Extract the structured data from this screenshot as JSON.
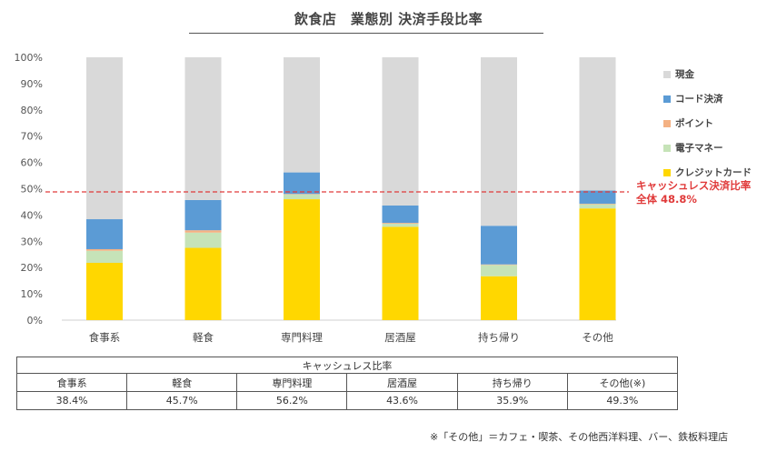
{
  "title": "飲食店　業態別 決済手段比率",
  "chart_data": {
    "type": "bar",
    "stacked": true,
    "categories": [
      "食事系",
      "軽食",
      "専門料理",
      "居酒屋",
      "持ち帰り",
      "その他"
    ],
    "y_ticks": [
      "0%",
      "10%",
      "20%",
      "30%",
      "40%",
      "50%",
      "60%",
      "70%",
      "80%",
      "90%",
      "100%"
    ],
    "ylim": [
      0,
      100
    ],
    "series": [
      {
        "name": "クレジットカード",
        "color": "#FFD700",
        "values": [
          21.8,
          27.5,
          46.0,
          35.5,
          16.7,
          42.5
        ]
      },
      {
        "name": "電子マネー",
        "color": "#C6E3B8",
        "values": [
          4.6,
          5.8,
          1.8,
          1.2,
          4.3,
          1.6
        ]
      },
      {
        "name": "ポイント",
        "color": "#F4B183",
        "values": [
          0.6,
          0.9,
          0.2,
          0.3,
          0.2,
          0.2
        ]
      },
      {
        "name": "コード決済",
        "color": "#5B9BD5",
        "values": [
          11.4,
          11.5,
          8.2,
          6.6,
          14.7,
          5.0
        ]
      },
      {
        "name": "現金",
        "color": "#D9D9D9",
        "values": [
          61.6,
          54.3,
          43.8,
          56.4,
          64.1,
          50.7
        ]
      }
    ],
    "legend_order": [
      "現金",
      "コード決済",
      "ポイント",
      "電子マネー",
      "クレジットカード"
    ],
    "legend_position": "right",
    "reference_line": {
      "value": 48.8,
      "color": "#E03A3A",
      "label_lines": [
        "キャッシュレス決済比率",
        "全体 48.8%"
      ]
    },
    "grid": false
  },
  "table": {
    "header": "キャッシュレス比率",
    "columns": [
      "食事系",
      "軽食",
      "専門料理",
      "居酒屋",
      "持ち帰り",
      "その他(※)"
    ],
    "values": [
      "38.4%",
      "45.7%",
      "56.2%",
      "43.6%",
      "35.9%",
      "49.3%"
    ]
  },
  "footnote": "※「その他」＝カフェ・喫茶、その他西洋料理、バー、鉄板料理店"
}
